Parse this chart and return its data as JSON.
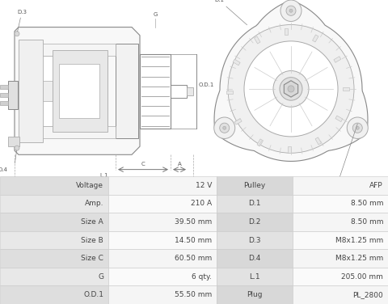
{
  "bg_color": "#ffffff",
  "drawing_bg": "#ffffff",
  "table_border_color": "#c8c8c8",
  "row_label_bg_odd": "#e2e2e2",
  "row_label_bg_even": "#ebebeb",
  "row_value_bg_odd": "#f5f5f5",
  "row_value_bg_even": "#fafafa",
  "rows": [
    [
      "Voltage",
      "12 V",
      "Pulley",
      "AFP"
    ],
    [
      "Amp.",
      "210 A",
      "D.1",
      "8.50 mm"
    ],
    [
      "Size A",
      "39.50 mm",
      "D.2",
      "8.50 mm"
    ],
    [
      "Size B",
      "14.50 mm",
      "D.3",
      "M8x1.25 mm"
    ],
    [
      "Size C",
      "60.50 mm",
      "D.4",
      "M8x1.25 mm"
    ],
    [
      "G",
      "6 qty.",
      "L.1",
      "205.00 mm"
    ],
    [
      "O.D.1",
      "55.50 mm",
      "Plug",
      "PL_2800"
    ]
  ],
  "line_color": "#aaaaaa",
  "line_color_dark": "#888888",
  "text_color": "#555555",
  "table_text_color": "#444444",
  "label_fontsize": 5.0,
  "table_fontsize": 6.5
}
